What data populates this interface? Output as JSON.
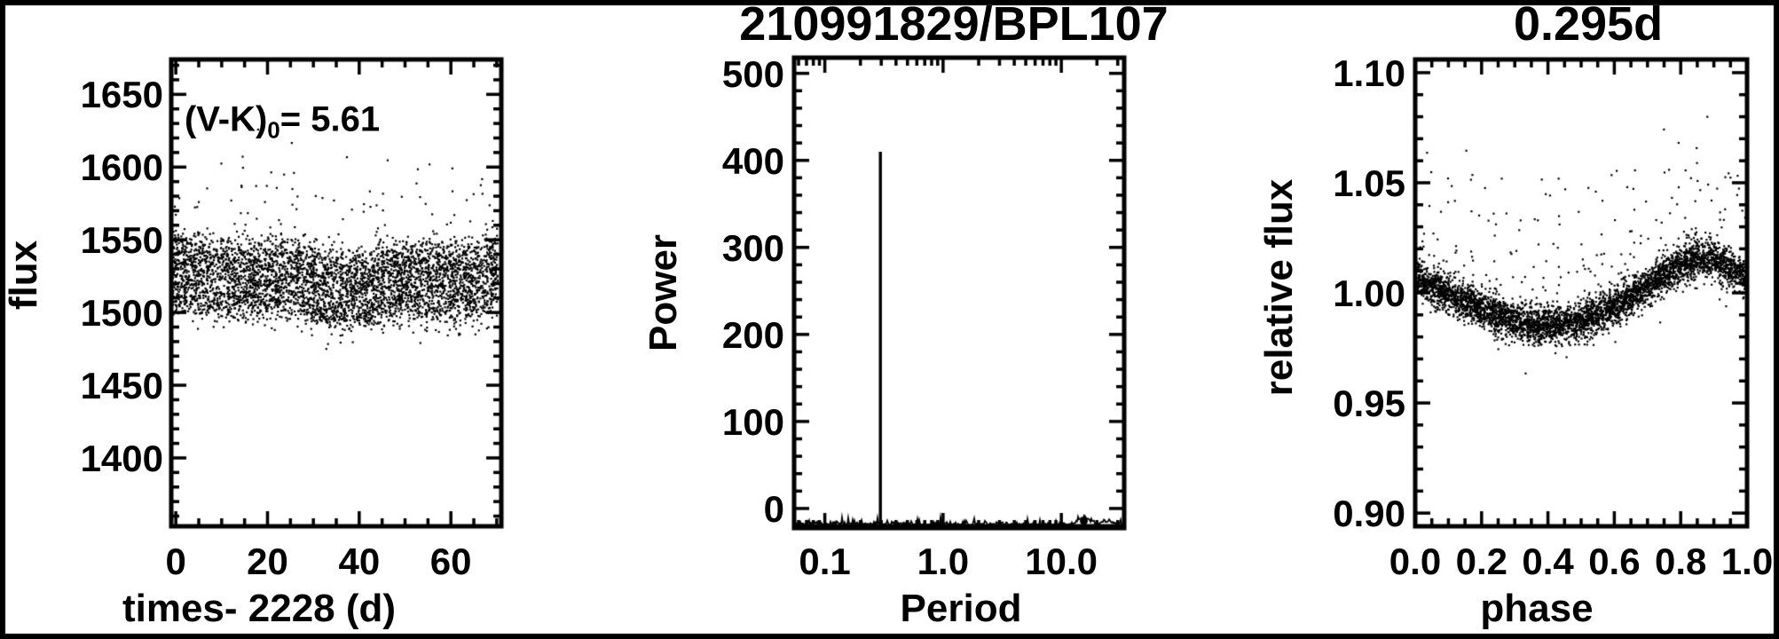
{
  "figure": {
    "background": "#ffffff",
    "ink_color": "#000000",
    "middle_title": "210991829/BPL107",
    "right_title": "0.295d"
  },
  "chart_data": [
    {
      "panel": "light-curve",
      "type": "scatter",
      "xlabel": "times- 2228 (d)",
      "ylabel": "flux",
      "xlim": [
        -1,
        71
      ],
      "ylim": [
        1353,
        1674
      ],
      "x_ticks": [
        {
          "v": 0,
          "label": "0"
        },
        {
          "v": 20,
          "label": "20"
        },
        {
          "v": 40,
          "label": "40"
        },
        {
          "v": 60,
          "label": "60"
        }
      ],
      "x_minor_step": 5,
      "y_ticks": [
        {
          "v": 1650,
          "label": "1650"
        },
        {
          "v": 1600,
          "label": "1600"
        },
        {
          "v": 1550,
          "label": "1550"
        },
        {
          "v": 1500,
          "label": "1500"
        },
        {
          "v": 1450,
          "label": "1450"
        },
        {
          "v": 1400,
          "label": "1400"
        }
      ],
      "y_minor_step": 10,
      "annotation_full": "(V-K)0= 5.61",
      "annotation_pre": "(V-K)",
      "annotation_sub": "0",
      "annotation_post": "= 5.61",
      "n_points": 4600,
      "band_center_flux": 1521,
      "band_center_drift": 5,
      "periodic_amplitude": 18.5,
      "noise_sigma": 7,
      "outlier_fraction_high": 0.035,
      "outlier_fraction_low": 0.006,
      "flux_max_outlier": 1612,
      "flux_min_outlier": 1468
    },
    {
      "panel": "periodogram",
      "type": "line",
      "title": "210991829/BPL107",
      "xlabel": "Period",
      "ylabel": "Power",
      "x_scale": "log",
      "xlim": [
        0.055,
        34
      ],
      "ylim": [
        -22.5,
        518
      ],
      "x_ticks": [
        {
          "v": 0.1,
          "label": "0.1"
        },
        {
          "v": 1,
          "label": "1.0"
        },
        {
          "v": 10,
          "label": "10.0"
        }
      ],
      "y_ticks": [
        {
          "v": 500,
          "label": "500"
        },
        {
          "v": 400,
          "label": "400"
        },
        {
          "v": 300,
          "label": "300"
        },
        {
          "v": 200,
          "label": "200"
        },
        {
          "v": 100,
          "label": "100"
        },
        {
          "v": 0,
          "label": "0"
        }
      ],
      "y_minor_step": 20,
      "peak_period": 0.295,
      "peak_power": 410,
      "secondary_bump": {
        "period": 15.5,
        "power": 9
      },
      "noise_floor_power_range": [
        0,
        10
      ]
    },
    {
      "panel": "phased-light-curve",
      "type": "scatter",
      "title": "0.295d",
      "xlabel": "phase",
      "ylabel": "relative flux",
      "xlim": [
        0,
        1
      ],
      "ylim": [
        0.894,
        1.106
      ],
      "x_ticks": [
        {
          "v": 0.0,
          "label": "0.0"
        },
        {
          "v": 0.2,
          "label": "0.2"
        },
        {
          "v": 0.4,
          "label": "0.4"
        },
        {
          "v": 0.6,
          "label": "0.6"
        },
        {
          "v": 0.8,
          "label": "0.8"
        },
        {
          "v": 1.0,
          "label": "1.0"
        }
      ],
      "x_minor_step": 0.05,
      "y_ticks": [
        {
          "v": 1.1,
          "label": "1.10"
        },
        {
          "v": 1.05,
          "label": "1.05"
        },
        {
          "v": 1.0,
          "label": "1.00"
        },
        {
          "v": 0.95,
          "label": "0.95"
        },
        {
          "v": 0.9,
          "label": "0.90"
        }
      ],
      "y_minor_step": 0.01,
      "n_points": 4600,
      "mean_curve": {
        "phase": [
          0.0,
          0.05,
          0.1,
          0.15,
          0.2,
          0.25,
          0.3,
          0.35,
          0.4,
          0.45,
          0.5,
          0.55,
          0.6,
          0.65,
          0.7,
          0.75,
          0.8,
          0.85,
          0.9,
          0.95,
          1.0
        ],
        "relative_flux": [
          1.0065,
          1.003,
          0.9995,
          0.996,
          0.9925,
          0.9895,
          0.9872,
          0.9857,
          0.985,
          0.9855,
          0.987,
          0.9898,
          0.9935,
          0.998,
          1.003,
          1.008,
          1.0125,
          1.015,
          1.015,
          1.011,
          1.0065
        ]
      },
      "noise_sigma": 0.0042,
      "outlier_fraction_high": 0.045,
      "outlier_fraction_low": 0.004,
      "flux_max_outlier": 1.082
    }
  ]
}
